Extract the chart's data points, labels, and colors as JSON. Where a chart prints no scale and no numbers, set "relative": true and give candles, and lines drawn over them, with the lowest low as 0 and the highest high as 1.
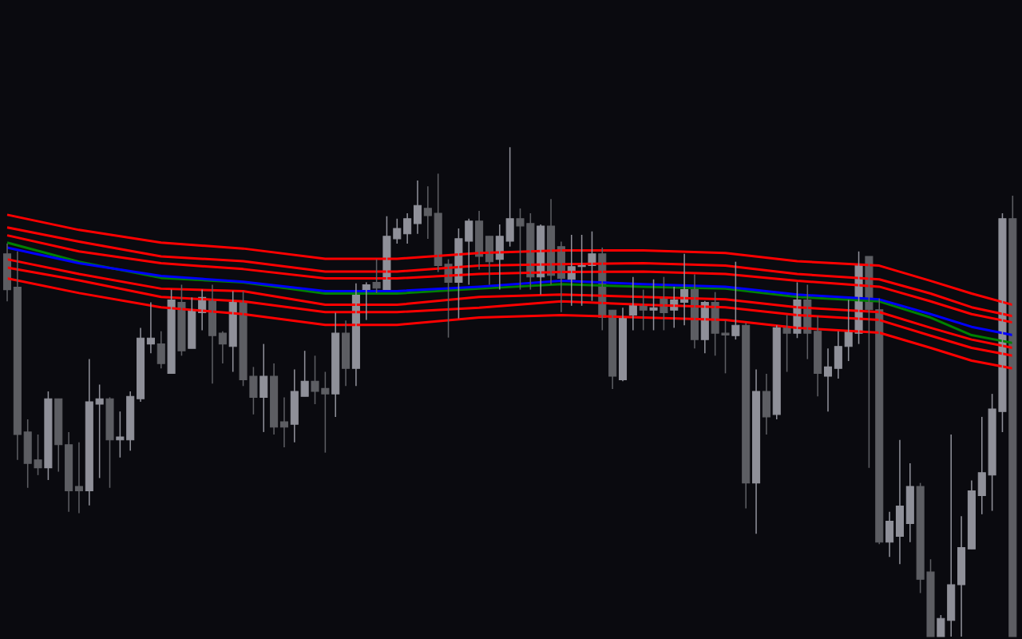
{
  "chart_data": {
    "type": "candlestick",
    "relative": true,
    "categories": [
      null,
      null,
      null,
      null,
      null,
      null,
      null,
      null,
      null,
      null,
      null,
      null,
      null,
      null,
      null,
      null,
      null,
      null,
      null,
      null,
      null,
      null,
      null,
      null,
      null,
      null,
      null,
      null,
      null,
      null,
      null,
      null,
      null,
      null,
      null,
      null,
      null,
      null,
      null,
      null,
      null,
      null,
      null,
      null,
      null,
      null,
      null,
      null,
      null,
      null,
      null,
      null,
      null,
      null,
      null,
      null,
      null,
      null,
      null,
      null,
      null,
      null,
      null,
      null,
      null,
      null,
      null,
      null,
      null,
      null,
      null,
      null,
      null,
      null,
      null,
      null,
      null,
      null,
      null,
      null,
      null,
      null,
      null,
      null,
      null,
      null,
      null,
      null,
      null,
      null,
      null,
      null,
      null,
      null,
      null,
      null,
      null,
      null,
      null
    ],
    "ohlc": [
      [
        0.782,
        0.803,
        0.685,
        0.709
      ],
      [
        0.714,
        0.787,
        0.361,
        0.413
      ],
      [
        0.418,
        0.444,
        0.304,
        0.354
      ],
      [
        0.361,
        0.413,
        0.33,
        0.345
      ],
      [
        0.345,
        0.501,
        0.32,
        0.486
      ],
      [
        0.486,
        0.486,
        0.337,
        0.392
      ],
      [
        0.392,
        0.418,
        0.255,
        0.298
      ],
      [
        0.307,
        0.397,
        0.252,
        0.298
      ],
      [
        0.298,
        0.567,
        0.268,
        0.48
      ],
      [
        0.475,
        0.515,
        0.324,
        0.486
      ],
      [
        0.486,
        0.489,
        0.304,
        0.402
      ],
      [
        0.402,
        0.46,
        0.366,
        0.408
      ],
      [
        0.402,
        0.501,
        0.38,
        0.491
      ],
      [
        0.486,
        0.631,
        0.48,
        0.61
      ],
      [
        0.598,
        0.683,
        0.579,
        0.61
      ],
      [
        0.598,
        0.624,
        0.548,
        0.558
      ],
      [
        0.538,
        0.709,
        0.538,
        0.688
      ],
      [
        0.683,
        0.719,
        0.574,
        0.584
      ],
      [
        0.589,
        0.693,
        0.589,
        0.668
      ],
      [
        0.662,
        0.709,
        0.626,
        0.693
      ],
      [
        0.688,
        0.719,
        0.517,
        0.615
      ],
      [
        0.62,
        0.624,
        0.558,
        0.598
      ],
      [
        0.593,
        0.706,
        0.541,
        0.683
      ],
      [
        0.683,
        0.706,
        0.512,
        0.525
      ],
      [
        0.532,
        0.551,
        0.454,
        0.489
      ],
      [
        0.489,
        0.598,
        0.418,
        0.532
      ],
      [
        0.532,
        0.558,
        0.413,
        0.428
      ],
      [
        0.439,
        0.489,
        0.387,
        0.428
      ],
      [
        0.434,
        0.546,
        0.397,
        0.501
      ],
      [
        0.491,
        0.584,
        0.491,
        0.522
      ],
      [
        0.522,
        0.574,
        0.475,
        0.501
      ],
      [
        0.507,
        0.541,
        0.376,
        0.496
      ],
      [
        0.496,
        0.662,
        0.449,
        0.62
      ],
      [
        0.62,
        0.646,
        0.512,
        0.548
      ],
      [
        0.548,
        0.722,
        0.512,
        0.704
      ],
      [
        0.709,
        0.724,
        0.647,
        0.719
      ],
      [
        0.724,
        0.771,
        0.702,
        0.712
      ],
      [
        0.709,
        0.859,
        0.709,
        0.818
      ],
      [
        0.813,
        0.854,
        0.803,
        0.834
      ],
      [
        0.823,
        0.865,
        0.803,
        0.854
      ],
      [
        0.844,
        0.932,
        0.823,
        0.881
      ],
      [
        0.875,
        0.92,
        0.813,
        0.86
      ],
      [
        0.865,
        0.946,
        0.745,
        0.758
      ],
      [
        0.761,
        0.771,
        0.611,
        0.724
      ],
      [
        0.724,
        0.834,
        0.65,
        0.813
      ],
      [
        0.808,
        0.854,
        0.719,
        0.849
      ],
      [
        0.849,
        0.87,
        0.75,
        0.777
      ],
      [
        0.818,
        0.818,
        0.719,
        0.766
      ],
      [
        0.771,
        0.842,
        0.709,
        0.818
      ],
      [
        0.808,
        1.0,
        0.797,
        0.854
      ],
      [
        0.854,
        0.875,
        0.709,
        0.839
      ],
      [
        0.844,
        0.865,
        0.709,
        0.735
      ],
      [
        0.735,
        0.842,
        0.699,
        0.839
      ],
      [
        0.839,
        0.894,
        0.719,
        0.738
      ],
      [
        0.797,
        0.807,
        0.663,
        0.732
      ],
      [
        0.73,
        0.821,
        0.676,
        0.756
      ],
      [
        0.756,
        0.821,
        0.676,
        0.761
      ],
      [
        0.758,
        0.828,
        0.686,
        0.782
      ],
      [
        0.782,
        0.795,
        0.626,
        0.652
      ],
      [
        0.667,
        0.667,
        0.506,
        0.532
      ],
      [
        0.525,
        0.672,
        0.522,
        0.652
      ],
      [
        0.657,
        0.735,
        0.626,
        0.678
      ],
      [
        0.678,
        0.709,
        0.626,
        0.667
      ],
      [
        0.667,
        0.73,
        0.626,
        0.672
      ],
      [
        0.693,
        0.735,
        0.626,
        0.662
      ],
      [
        0.667,
        0.715,
        0.631,
        0.688
      ],
      [
        0.683,
        0.782,
        0.636,
        0.709
      ],
      [
        0.709,
        0.74,
        0.589,
        0.607
      ],
      [
        0.607,
        0.686,
        0.579,
        0.683
      ],
      [
        0.683,
        0.704,
        0.574,
        0.62
      ],
      [
        0.62,
        0.646,
        0.538,
        0.616
      ],
      [
        0.615,
        0.766,
        0.607,
        0.636
      ],
      [
        0.636,
        0.641,
        0.262,
        0.314
      ],
      [
        0.314,
        0.546,
        0.21,
        0.501
      ],
      [
        0.501,
        0.537,
        0.413,
        0.449
      ],
      [
        0.454,
        0.636,
        0.444,
        0.631
      ],
      [
        0.631,
        0.657,
        0.541,
        0.62
      ],
      [
        0.62,
        0.724,
        0.61,
        0.688
      ],
      [
        0.688,
        0.719,
        0.567,
        0.62
      ],
      [
        0.624,
        0.655,
        0.491,
        0.538
      ],
      [
        0.532,
        0.589,
        0.46,
        0.551
      ],
      [
        0.548,
        0.624,
        0.527,
        0.593
      ],
      [
        0.593,
        0.688,
        0.563,
        0.624
      ],
      [
        0.62,
        0.787,
        0.598,
        0.761
      ],
      [
        0.777,
        0.777,
        0.345,
        0.668
      ],
      [
        0.668,
        0.691,
        0.189,
        0.193
      ],
      [
        0.193,
        0.255,
        0.163,
        0.236
      ],
      [
        0.205,
        0.402,
        0.148,
        0.267
      ],
      [
        0.231,
        0.354,
        0.193,
        0.307
      ],
      [
        0.307,
        0.314,
        0.089,
        0.117
      ],
      [
        0.132,
        0.158,
        0,
        0
      ],
      [
        0,
        0.044,
        0,
        0.037
      ],
      [
        0.033,
        0.413,
        0,
        0.106
      ],
      [
        0.106,
        0.246,
        0,
        0.182
      ],
      [
        0.179,
        0.319,
        0.179,
        0.298
      ],
      [
        0.288,
        0.449,
        0.25,
        0.335
      ],
      [
        0.33,
        0.496,
        0.257,
        0.465
      ],
      [
        0.46,
        0.865,
        0.418,
        0.854
      ],
      [
        0.854,
        0.901,
        0,
        0
      ]
    ],
    "colors": [
      "#5d5e63",
      "#5d5e63",
      "#5d5e63",
      "#5d5e63",
      "#8f9099",
      "#5d5e63",
      "#5d5e63",
      "#5d5e63",
      "#8f9099",
      "#8f9099",
      "#5d5e63",
      "#8f9099",
      "#8f9099",
      "#8f9099",
      "#8f9099",
      "#5d5e63",
      "#8f9099",
      "#5d5e63",
      "#8f9099",
      "#8f9099",
      "#5d5e63",
      "#5d5e63",
      "#8f9099",
      "#5d5e63",
      "#5d5e63",
      "#8f9099",
      "#5d5e63",
      "#5d5e63",
      "#8f9099",
      "#8f9099",
      "#5d5e63",
      "#5d5e63",
      "#8f9099",
      "#5d5e63",
      "#8f9099",
      "#8f9099",
      "#5d5e63",
      "#8f9099",
      "#8f9099",
      "#8f9099",
      "#8f9099",
      "#5d5e63",
      "#5d5e63",
      "#5d5e63",
      "#8f9099",
      "#8f9099",
      "#5d5e63",
      "#5d5e63",
      "#8f9099",
      "#8f9099",
      "#5d5e63",
      "#5d5e63",
      "#8f9099",
      "#5d5e63",
      "#5d5e63",
      "#8f9099",
      "#8f9099",
      "#8f9099",
      "#5d5e63",
      "#5d5e63",
      "#8f9099",
      "#8f9099",
      "#5d5e63",
      "#8f9099",
      "#5d5e63",
      "#8f9099",
      "#8f9099",
      "#5d5e63",
      "#8f9099",
      "#5d5e63",
      "#5d5e63",
      "#8f9099",
      "#5d5e63",
      "#8f9099",
      "#5d5e63",
      "#8f9099",
      "#5d5e63",
      "#8f9099",
      "#5d5e63",
      "#5d5e63",
      "#8f9099",
      "#8f9099",
      "#8f9099",
      "#8f9099",
      "#5d5e63",
      "#5d5e63",
      "#8f9099",
      "#8f9099",
      "#8f9099",
      "#5d5e63",
      "#5d5e63",
      "#8f9099",
      "#8f9099",
      "#8f9099",
      "#8f9099",
      "#8f9099",
      "#8f9099",
      "#8f9099",
      "#5d5e63"
    ],
    "series": [
      {
        "type": "line",
        "color": "#ff0000",
        "values": [
          0.862,
          null,
          null,
          null,
          null,
          null,
          null,
          0.831,
          null,
          null,
          null,
          null,
          null,
          null,
          null,
          0.805,
          null,
          null,
          null,
          null,
          null,
          null,
          null,
          0.793,
          null,
          null,
          null,
          null,
          null,
          null,
          null,
          0.772,
          null,
          null,
          null,
          null,
          null,
          null,
          0.772,
          null,
          null,
          null,
          null,
          null,
          null,
          null,
          0.784,
          null,
          null,
          null,
          null,
          null,
          null,
          null,
          0.789,
          null,
          null,
          null,
          null,
          null,
          null,
          null,
          0.789,
          null,
          null,
          null,
          null,
          null,
          null,
          null,
          0.784,
          null,
          null,
          null,
          null,
          null,
          null,
          0.767,
          null,
          null,
          null,
          null,
          null,
          null,
          null,
          0.758,
          null,
          null,
          null,
          null,
          0.727,
          null,
          null,
          null,
          0.701,
          null,
          null,
          null,
          0.678
        ]
      },
      {
        "type": "line",
        "color": "#ff0000",
        "values": [
          0.836,
          null,
          null,
          null,
          null,
          null,
          null,
          0.807,
          null,
          null,
          null,
          null,
          null,
          null,
          null,
          0.777,
          null,
          null,
          null,
          null,
          null,
          null,
          null,
          0.767,
          null,
          null,
          null,
          null,
          null,
          null,
          null,
          0.746,
          null,
          null,
          null,
          null,
          null,
          null,
          0.746,
          null,
          null,
          null,
          null,
          null,
          null,
          null,
          0.758,
          null,
          null,
          null,
          null,
          null,
          null,
          null,
          0.761,
          null,
          null,
          null,
          null,
          null,
          null,
          null,
          0.763,
          null,
          null,
          null,
          null,
          null,
          null,
          null,
          0.758,
          null,
          null,
          null,
          null,
          null,
          null,
          0.741,
          null,
          null,
          null,
          null,
          null,
          null,
          null,
          0.73,
          null,
          null,
          null,
          null,
          0.701,
          null,
          null,
          null,
          0.673,
          null,
          null,
          null,
          0.655
        ]
      },
      {
        "type": "line",
        "color": "#ff0000",
        "values": [
          0.82,
          null,
          null,
          null,
          null,
          null,
          null,
          0.787,
          null,
          null,
          null,
          null,
          null,
          null,
          null,
          0.763,
          null,
          null,
          null,
          null,
          null,
          null,
          null,
          0.751,
          null,
          null,
          null,
          null,
          null,
          null,
          null,
          0.732,
          null,
          null,
          null,
          null,
          null,
          null,
          0.732,
          null,
          null,
          null,
          null,
          null,
          null,
          null,
          0.741,
          null,
          null,
          null,
          null,
          null,
          null,
          null,
          0.745,
          null,
          null,
          null,
          null,
          null,
          null,
          null,
          0.746,
          null,
          null,
          null,
          null,
          null,
          null,
          null,
          0.741,
          null,
          null,
          null,
          null,
          null,
          null,
          0.727,
          null,
          null,
          null,
          null,
          null,
          null,
          null,
          0.715,
          null,
          null,
          null,
          null,
          0.685,
          null,
          null,
          null,
          0.659,
          null,
          null,
          null,
          0.642
        ]
      },
      {
        "type": "line",
        "color": "#008000",
        "values": [
          0.805,
          null,
          null,
          null,
          null,
          null,
          null,
          0.766,
          null,
          null,
          null,
          null,
          null,
          null,
          null,
          0.733,
          null,
          null,
          null,
          null,
          null,
          null,
          null,
          0.724,
          null,
          null,
          null,
          null,
          null,
          null,
          null,
          0.701,
          null,
          null,
          null,
          null,
          null,
          null,
          0.701,
          null,
          null,
          null,
          null,
          null,
          null,
          null,
          0.711,
          null,
          null,
          null,
          null,
          null,
          null,
          null,
          0.72,
          null,
          null,
          null,
          null,
          null,
          null,
          null,
          0.715,
          null,
          null,
          null,
          null,
          null,
          null,
          null,
          0.711,
          null,
          null,
          null,
          null,
          null,
          null,
          0.694,
          null,
          null,
          null,
          null,
          null,
          null,
          null,
          0.685,
          null,
          null,
          null,
          null,
          0.652,
          null,
          null,
          null,
          0.616,
          null,
          null,
          null,
          0.6
        ]
      },
      {
        "type": "line",
        "color": "#0000ff",
        "values": [
          0.795,
          null,
          null,
          null,
          null,
          null,
          null,
          0.763,
          null,
          null,
          null,
          null,
          null,
          null,
          null,
          0.737,
          null,
          null,
          null,
          null,
          null,
          null,
          null,
          0.725,
          null,
          null,
          null,
          null,
          null,
          null,
          null,
          0.706,
          null,
          null,
          null,
          null,
          null,
          null,
          0.706,
          null,
          null,
          null,
          null,
          null,
          null,
          null,
          0.715,
          null,
          null,
          null,
          null,
          null,
          null,
          null,
          0.727,
          null,
          null,
          null,
          null,
          null,
          null,
          null,
          0.72,
          null,
          null,
          null,
          null,
          null,
          null,
          null,
          0.715,
          null,
          null,
          null,
          null,
          null,
          null,
          0.699,
          null,
          null,
          null,
          null,
          null,
          null,
          null,
          0.689,
          null,
          null,
          null,
          null,
          0.659,
          null,
          null,
          null,
          0.633,
          null,
          null,
          null,
          0.616
        ]
      },
      {
        "type": "line",
        "color": "#ff0000",
        "values": [
          0.771,
          null,
          null,
          null,
          null,
          null,
          null,
          0.741,
          null,
          null,
          null,
          null,
          null,
          null,
          null,
          0.711,
          null,
          null,
          null,
          null,
          null,
          null,
          null,
          0.706,
          null,
          null,
          null,
          null,
          null,
          null,
          null,
          0.678,
          null,
          null,
          null,
          null,
          null,
          null,
          0.678,
          null,
          null,
          null,
          null,
          null,
          null,
          null,
          0.694,
          null,
          null,
          null,
          null,
          null,
          null,
          null,
          0.699,
          null,
          null,
          null,
          null,
          null,
          null,
          null,
          0.694,
          null,
          null,
          null,
          null,
          null,
          null,
          null,
          0.689,
          null,
          null,
          null,
          null,
          null,
          null,
          0.673,
          null,
          null,
          null,
          null,
          null,
          null,
          null,
          0.663,
          null,
          null,
          null,
          null,
          0.631,
          null,
          null,
          null,
          0.607,
          null,
          null,
          null,
          0.59
        ]
      },
      {
        "type": "line",
        "color": "#ff0000",
        "values": [
          0.754,
          null,
          null,
          null,
          null,
          null,
          null,
          0.728,
          null,
          null,
          null,
          null,
          null,
          null,
          null,
          0.694,
          null,
          null,
          null,
          null,
          null,
          null,
          null,
          0.685,
          null,
          null,
          null,
          null,
          null,
          null,
          null,
          0.663,
          null,
          null,
          null,
          null,
          null,
          null,
          0.663,
          null,
          null,
          null,
          null,
          null,
          null,
          null,
          0.672,
          null,
          null,
          null,
          null,
          null,
          null,
          null,
          0.685,
          null,
          null,
          null,
          null,
          null,
          null,
          null,
          0.678,
          null,
          null,
          null,
          null,
          null,
          null,
          null,
          0.673,
          null,
          null,
          null,
          null,
          null,
          null,
          0.657,
          null,
          null,
          null,
          null,
          null,
          null,
          null,
          0.647,
          null,
          null,
          null,
          null,
          0.615,
          null,
          null,
          null,
          0.59,
          null,
          null,
          null,
          0.574
        ]
      },
      {
        "type": "line",
        "color": "#ff0000",
        "values": [
          0.732,
          null,
          null,
          null,
          null,
          null,
          null,
          0.702,
          null,
          null,
          null,
          null,
          null,
          null,
          null,
          0.673,
          null,
          null,
          null,
          null,
          null,
          null,
          null,
          0.659,
          null,
          null,
          null,
          null,
          null,
          null,
          null,
          0.637,
          null,
          null,
          null,
          null,
          null,
          null,
          0.637,
          null,
          null,
          null,
          null,
          null,
          null,
          null,
          0.652,
          null,
          null,
          null,
          null,
          null,
          null,
          null,
          0.657,
          null,
          null,
          null,
          null,
          null,
          null,
          null,
          0.652,
          null,
          null,
          null,
          null,
          null,
          null,
          null,
          0.647,
          null,
          null,
          null,
          null,
          null,
          null,
          0.631,
          null,
          null,
          null,
          null,
          null,
          null,
          null,
          0.621,
          null,
          null,
          null,
          null,
          0.59,
          null,
          null,
          null,
          0.564,
          null,
          null,
          null,
          0.548
        ]
      }
    ]
  }
}
